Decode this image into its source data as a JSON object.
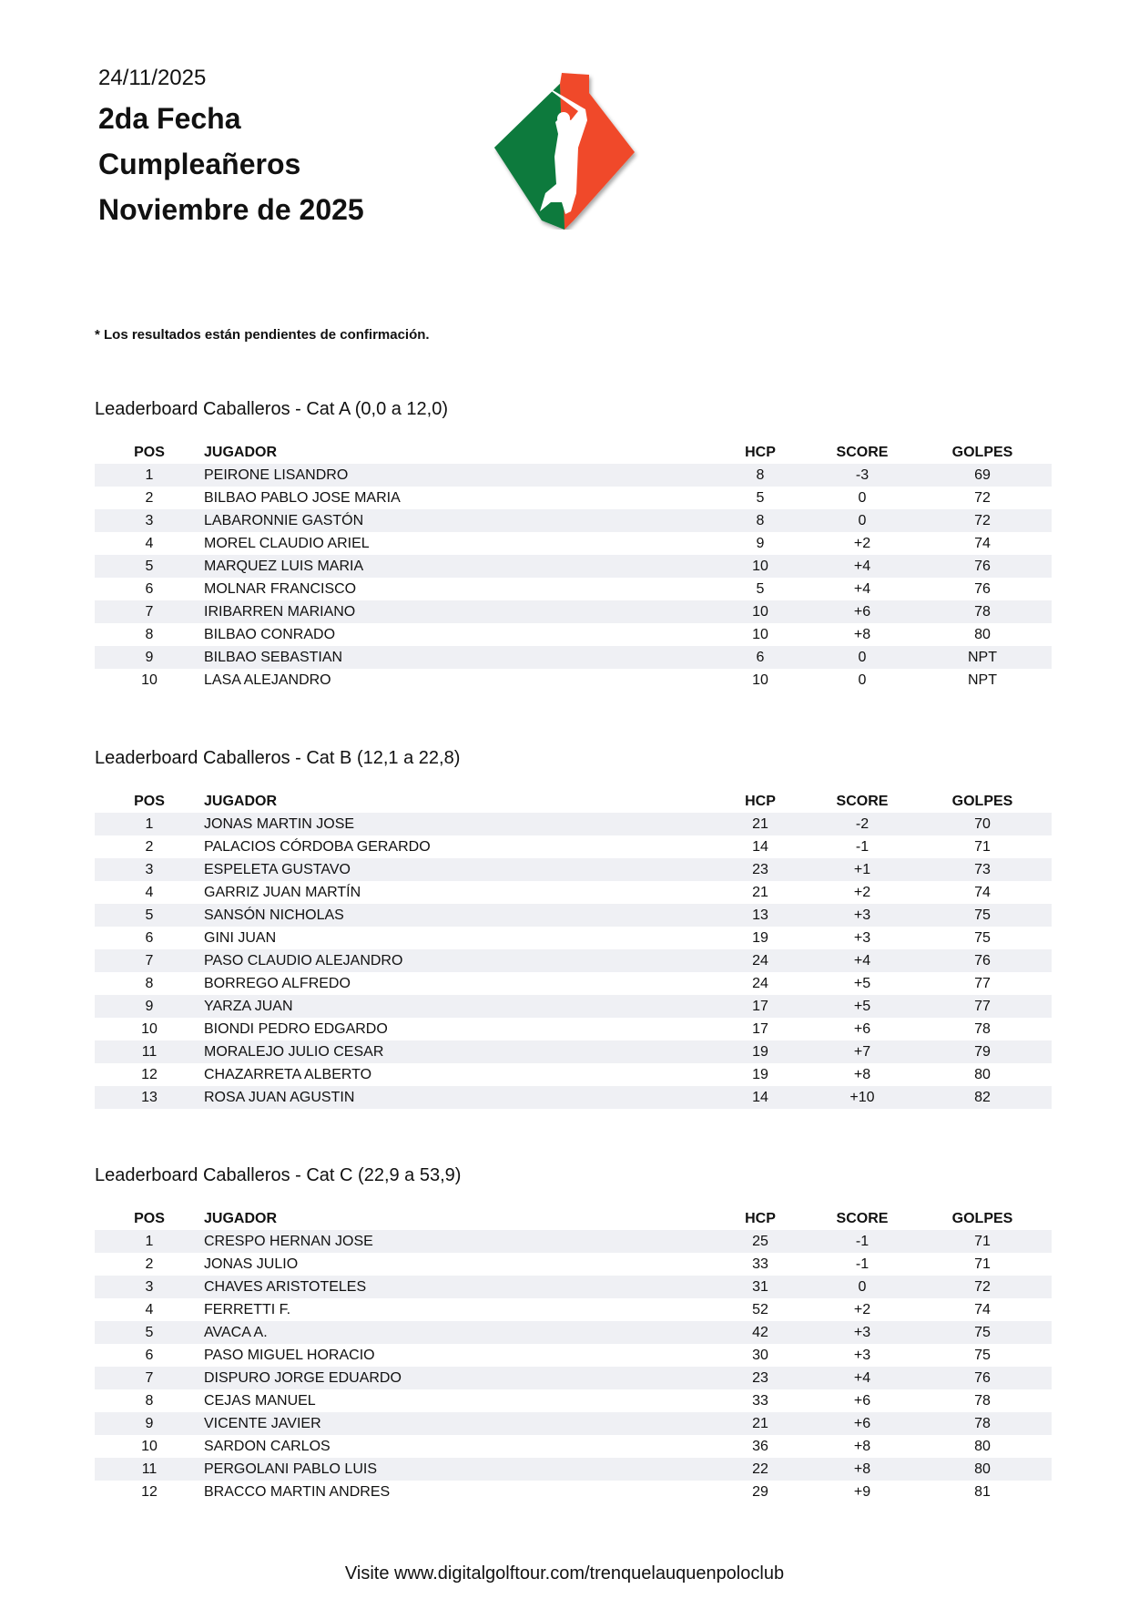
{
  "header": {
    "date": "24/11/2025",
    "title_lines": [
      "2da Fecha",
      "Cumpleañeros",
      "Noviembre de 2025"
    ],
    "logo": "golfer-diamond-logo"
  },
  "note": "* Los resultados están pendientes de confirmación.",
  "colors": {
    "logo_green": "#0f7a3c",
    "logo_red": "#f04a2a",
    "row_stripe": "#eff0f4"
  },
  "columns": [
    "POS",
    "JUGADOR",
    "HCP",
    "SCORE",
    "GOLPES"
  ],
  "sections": [
    {
      "title": "Leaderboard Caballeros - Cat A (0,0 a 12,0)",
      "rows": [
        [
          "1",
          "PEIRONE LISANDRO",
          "8",
          "-3",
          "69"
        ],
        [
          "2",
          "BILBAO PABLO JOSE MARIA",
          "5",
          "0",
          "72"
        ],
        [
          "3",
          "LABARONNIE GASTÓN",
          "8",
          "0",
          "72"
        ],
        [
          "4",
          "MOREL CLAUDIO ARIEL",
          "9",
          "+2",
          "74"
        ],
        [
          "5",
          "MARQUEZ LUIS MARIA",
          "10",
          "+4",
          "76"
        ],
        [
          "6",
          "MOLNAR FRANCISCO",
          "5",
          "+4",
          "76"
        ],
        [
          "7",
          "IRIBARREN MARIANO",
          "10",
          "+6",
          "78"
        ],
        [
          "8",
          "BILBAO  CONRADO",
          "10",
          "+8",
          "80"
        ],
        [
          "9",
          "BILBAO SEBASTIAN",
          "6",
          "0",
          "NPT"
        ],
        [
          "10",
          "LASA ALEJANDRO",
          "10",
          "0",
          "NPT"
        ]
      ]
    },
    {
      "title": "Leaderboard Caballeros - Cat B (12,1 a 22,8)",
      "rows": [
        [
          "1",
          "JONAS MARTIN JOSE",
          "21",
          "-2",
          "70"
        ],
        [
          "2",
          "PALACIOS CÓRDOBA GERARDO",
          "14",
          "-1",
          "71"
        ],
        [
          "3",
          "ESPELETA GUSTAVO",
          "23",
          "+1",
          "73"
        ],
        [
          "4",
          "GARRIZ JUAN MARTÍN",
          "21",
          "+2",
          "74"
        ],
        [
          "5",
          "SANSÓN NICHOLAS",
          "13",
          "+3",
          "75"
        ],
        [
          "6",
          "GINI JUAN",
          "19",
          "+3",
          "75"
        ],
        [
          "7",
          "PASO  CLAUDIO ALEJANDRO",
          "24",
          "+4",
          "76"
        ],
        [
          "8",
          "BORREGO ALFREDO",
          "24",
          "+5",
          "77"
        ],
        [
          "9",
          "YARZA JUAN",
          "17",
          "+5",
          "77"
        ],
        [
          "10",
          "BIONDI PEDRO EDGARDO",
          "17",
          "+6",
          "78"
        ],
        [
          "11",
          "MORALEJO JULIO CESAR",
          "19",
          "+7",
          "79"
        ],
        [
          "12",
          "CHAZARRETA ALBERTO",
          "19",
          "+8",
          "80"
        ],
        [
          "13",
          "ROSA JUAN AGUSTIN",
          "14",
          "+10",
          "82"
        ]
      ]
    },
    {
      "title": "Leaderboard Caballeros - Cat C (22,9 a 53,9)",
      "rows": [
        [
          "1",
          "CRESPO HERNAN JOSE",
          "25",
          "-1",
          "71"
        ],
        [
          "2",
          "JONAS  JULIO",
          "33",
          "-1",
          "71"
        ],
        [
          "3",
          "CHAVES ARISTOTELES",
          "31",
          "0",
          "72"
        ],
        [
          "4",
          "FERRETTI F.",
          "52",
          "+2",
          "74"
        ],
        [
          "5",
          "AVACA A.",
          "42",
          "+3",
          "75"
        ],
        [
          "6",
          "PASO  MIGUEL HORACIO",
          "30",
          "+3",
          "75"
        ],
        [
          "7",
          "DISPURO JORGE EDUARDO",
          "23",
          "+4",
          "76"
        ],
        [
          "8",
          "CEJAS MANUEL",
          "33",
          "+6",
          "78"
        ],
        [
          "9",
          "VICENTE JAVIER",
          "21",
          "+6",
          "78"
        ],
        [
          "10",
          "SARDON CARLOS",
          "36",
          "+8",
          "80"
        ],
        [
          "11",
          "PERGOLANI PABLO LUIS",
          "22",
          "+8",
          "80"
        ],
        [
          "12",
          "BRACCO MARTIN ANDRES",
          "29",
          "+9",
          "81"
        ]
      ]
    }
  ],
  "footer": "Visite www.digitalgolftour.com/trenquelauquenpoloclub"
}
